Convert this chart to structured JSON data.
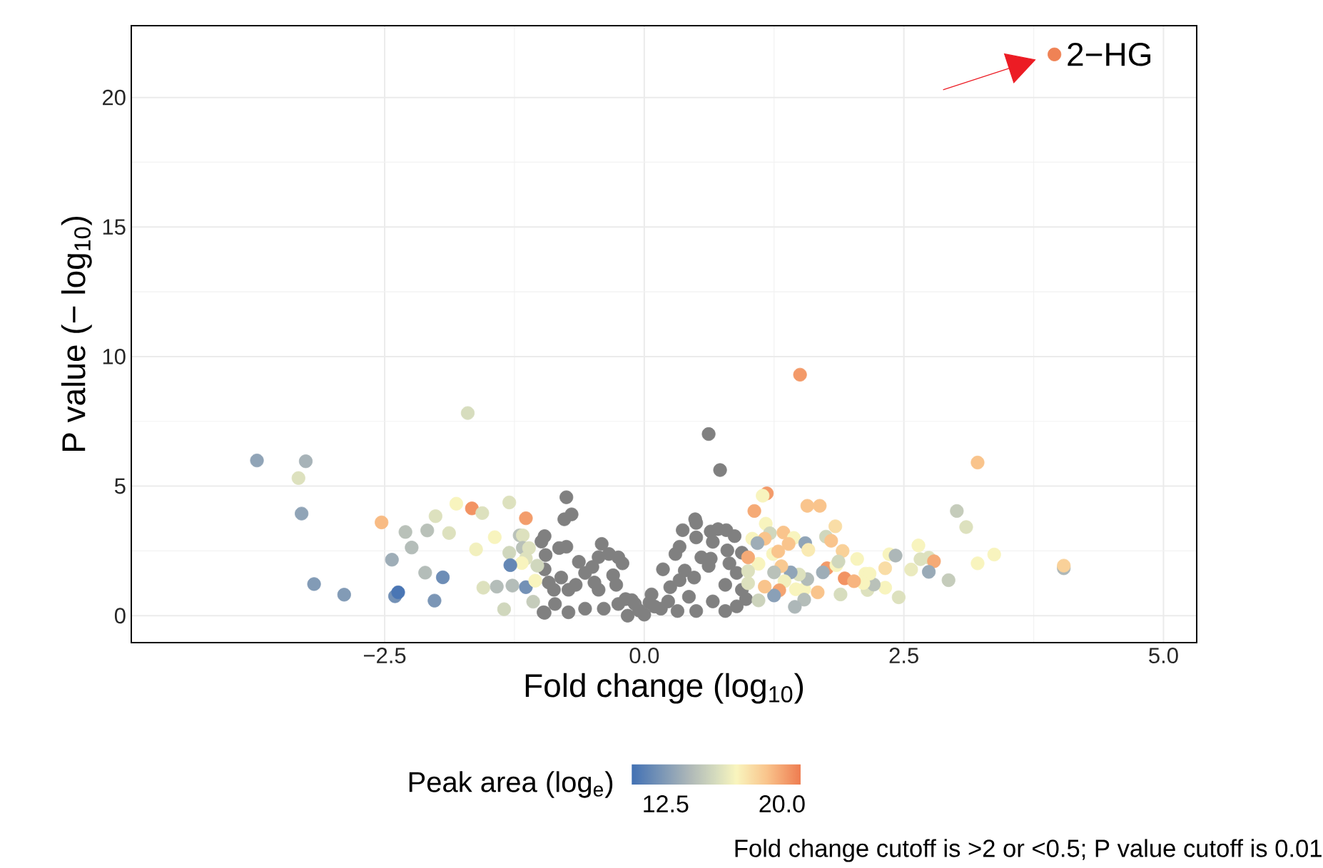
{
  "chart_data": {
    "type": "scatter",
    "xlabel": "Fold change (log$_{10}$)",
    "ylabel": "P value (− log$_{10}$)",
    "clabel": "Peak area (log$_{e}$)",
    "xlim": [
      -4.94,
      5.32
    ],
    "ylim": [
      -1.04,
      22.77
    ],
    "xticks": [
      {
        "value": -2.5,
        "label": "−2.5"
      },
      {
        "value": 0,
        "label": "0.0"
      },
      {
        "value": 2.5,
        "label": "2.5"
      },
      {
        "value": 5,
        "label": "5.0"
      }
    ],
    "yticks": [
      0,
      5,
      10,
      15,
      20
    ],
    "clim": [
      10.3,
      21.2
    ],
    "cticks": [
      12.5,
      {
        "value": 20,
        "label": "20.0"
      }
    ],
    "grid": true,
    "marker": "circle",
    "series": [
      {
        "color": "#808080",
        "x": [
          0.62,
          0.73,
          -0.75,
          -0.7,
          -0.77,
          -0.96,
          -0.99,
          -0.75,
          -0.82,
          -0.95,
          -0.41,
          -0.34,
          -0.63,
          -0.44,
          -0.25,
          -0.21,
          -0.96,
          -0.5,
          -0.57,
          -0.92,
          -0.8,
          -0.66,
          -0.97,
          -0.73,
          -0.86,
          -0.57,
          -0.44,
          -0.39,
          -0.3,
          -0.18,
          -0.16,
          0.0,
          0.16,
          0.07,
          0.18,
          0.25,
          0.32,
          0.37,
          0.49,
          0.5,
          0.3,
          0.34,
          0.5,
          0.64,
          0.71,
          0.79,
          0.87,
          0.66,
          0.8,
          0.94,
          0.55,
          0.64,
          0.39,
          0.48,
          0.62,
          0.82,
          0.89,
          0.78,
          0.94,
          0.98,
          0.89,
          0.78,
          0.66,
          0.5,
          0.43,
          0.34,
          0.23,
          -0.09,
          -0.25,
          -0.48,
          -0.73,
          -0.87,
          -0.27,
          -0.96,
          -0.05,
          0.1,
          -0.12,
          0.05
        ],
        "values": [
          7.01,
          5.62,
          4.57,
          3.91,
          3.72,
          3.07,
          2.86,
          2.66,
          2.61,
          2.34,
          2.77,
          2.38,
          2.08,
          2.26,
          2.25,
          2.02,
          1.79,
          1.88,
          1.65,
          1.28,
          1.47,
          1.19,
          0.13,
          0.13,
          0.45,
          0.27,
          1.0,
          0.27,
          1.56,
          0.64,
          0.0,
          0.04,
          0.27,
          0.82,
          1.79,
          1.1,
          0.18,
          3.3,
          3.72,
          3.58,
          2.38,
          2.66,
          3.02,
          3.25,
          3.34,
          3.3,
          3.07,
          2.85,
          2.52,
          2.43,
          2.25,
          2.2,
          1.74,
          1.47,
          1.92,
          2.02,
          1.65,
          1.19,
          1.0,
          0.64,
          0.36,
          0.18,
          0.55,
          0.18,
          0.73,
          1.37,
          0.55,
          0.45,
          0.45,
          1.28,
          1.0,
          1.0,
          1.19,
          0.11,
          0.2,
          0.35,
          0.6,
          0.5
        ]
      },
      {
        "x": [
          -1.7,
          -3.73,
          -3.26,
          -3.33,
          -3.3,
          -2.53,
          -2.3,
          -2.09,
          -2.24,
          -2.01,
          -1.88,
          -1.81,
          -1.66,
          -1.56,
          -1.44,
          -1.62,
          -1.3,
          -1.14,
          -1.2,
          -1.17,
          -1.17,
          -1.11,
          -1.3,
          -1.14,
          -1.18,
          -1.03,
          -1.29,
          -2.43,
          -2.11,
          -1.94,
          -3.18,
          -2.89,
          -2.4,
          -2.37,
          -2.02,
          -1.55,
          -1.42,
          -1.27,
          -1.14,
          -1.05,
          -1.07,
          -1.35,
          1.5,
          3.21,
          3.01,
          3.1,
          1.18,
          1.14,
          1.06,
          1.57,
          1.69,
          1.84,
          1.17,
          1.21,
          1.34,
          1.44,
          1.39,
          1.75,
          1.8,
          1.55,
          1.58,
          1.04,
          1.16,
          1.91,
          2.05,
          2.36,
          2.42,
          2.64,
          2.66,
          2.74,
          2.79,
          2.57,
          2.74,
          2.93,
          3.21,
          3.37,
          4.04,
          4.04,
          2.32,
          2.45,
          2.32,
          2.15,
          2.21,
          2.13,
          2.17,
          2.11,
          1.93,
          2.02,
          1.76,
          1.72,
          1.85,
          1.87,
          1.89,
          1.67,
          1.54,
          1.46,
          1.54,
          1.45,
          1.57,
          1.49,
          1.41,
          1.35,
          1.3,
          1.25,
          1.32,
          1.24,
          1.29,
          1.16,
          1.1,
          1.1,
          1.0,
          1.0,
          1.0,
          1.09,
          1.25,
          3.95
        ],
        "values": [
          7.82,
          5.99,
          5.96,
          5.31,
          3.94,
          3.6,
          3.23,
          3.29,
          2.63,
          3.84,
          3.19,
          4.32,
          4.14,
          3.96,
          3.03,
          2.56,
          4.37,
          3.76,
          3.1,
          3.1,
          2.62,
          2.61,
          2.43,
          2.21,
          2.03,
          1.93,
          1.95,
          2.16,
          1.66,
          1.48,
          1.22,
          0.81,
          0.75,
          0.9,
          0.58,
          1.08,
          1.12,
          1.16,
          1.1,
          1.35,
          0.54,
          0.25,
          9.3,
          5.91,
          4.04,
          3.42,
          4.72,
          4.63,
          4.04,
          4.24,
          4.24,
          3.45,
          3.55,
          3.18,
          3.21,
          3.0,
          2.77,
          3.05,
          2.89,
          2.8,
          2.54,
          2.97,
          2.97,
          2.5,
          2.19,
          2.37,
          2.32,
          2.71,
          2.18,
          2.24,
          2.1,
          1.78,
          1.69,
          1.37,
          2.02,
          2.36,
          1.83,
          1.93,
          1.83,
          0.71,
          1.08,
          0.99,
          1.2,
          1.62,
          1.62,
          1.26,
          1.44,
          1.33,
          1.83,
          1.67,
          1.95,
          2.09,
          0.82,
          0.9,
          1.02,
          1.02,
          0.62,
          0.34,
          1.41,
          1.59,
          1.67,
          1.33,
          0.98,
          0.78,
          1.91,
          2.38,
          2.48,
          1.12,
          0.59,
          2.0,
          1.72,
          1.25,
          2.25,
          2.8,
          1.67,
          21.66
        ],
        "colors": [
          "#d7ddbe",
          "#90a4b7",
          "#a7b3b8",
          "#dde1be",
          "#90a4b7",
          "#f8bb84",
          "#b9c1b9",
          "#b9c1b9",
          "#b4bdb9",
          "#dde1be",
          "#dde1be",
          "#f8f4be",
          "#f29363",
          "#dde1be",
          "#f8f4be",
          "#f2f0be",
          "#dde1be",
          "#f39d6c",
          "#b9c1b9",
          "#dde1be",
          "#b9c1b9",
          "#dde1be",
          "#d0d7bd",
          "#dde1be",
          "#f8f4be",
          "#d0d7bd",
          "#6487b5",
          "#9eadb7",
          "#b4bdb9",
          "#6d8db6",
          "#829bb6",
          "#829bb6",
          "#7391b6",
          "#4a76b4",
          "#7b96b6",
          "#dde1be",
          "#b4bdb9",
          "#b4bdb9",
          "#7391b6",
          "#f8f4be",
          "#c5ccbb",
          "#d0d7bd",
          "#f39a69",
          "#f9c48c",
          "#c5ccbb",
          "#dde1be",
          "#f39a69",
          "#f8f4be",
          "#f5aa76",
          "#f9c48c",
          "#f9c48c",
          "#f9dda6",
          "#f8f4be",
          "#d0d7bd",
          "#f9c48c",
          "#f8f4be",
          "#f9c48c",
          "#d0d7bd",
          "#f9c48c",
          "#90a4b7",
          "#f9eab3",
          "#f8f4be",
          "#f9c48c",
          "#f9d199",
          "#f8f4be",
          "#f8f4be",
          "#adb7b8",
          "#f8f4be",
          "#dde1be",
          "#dde1be",
          "#f5aa76",
          "#eaeabe",
          "#99aab7",
          "#c5ccbb",
          "#f8f4be",
          "#f8f4be",
          "#adb7b8",
          "#f9d199",
          "#f9dda6",
          "#dde1be",
          "#f8f4be",
          "#dde1be",
          "#b9c1b9",
          "#f8f4be",
          "#f8f4be",
          "#f8f4be",
          "#f29363",
          "#f7b47f",
          "#f39a69",
          "#9eadb7",
          "#f8f4be",
          "#d0d7bd",
          "#d7ddbe",
          "#f9c48c",
          "#f8f4be",
          "#f8f4be",
          "#b4bdb9",
          "#adb7b8",
          "#b2bbb8",
          "#dde1be",
          "#90a4b7",
          "#f2f0be",
          "#f4a471",
          "#8aa0b7",
          "#f9c991",
          "#f8f4be",
          "#f9c48c",
          "#f9c48c",
          "#ccd3bc",
          "#f8f4be",
          "#dde1be",
          "#dde1be",
          "#f5aa76",
          "#9eadb7",
          "#b9c1b9",
          "#ef8255"
        ],
        "cvalues": [
          15.8,
          13.0,
          13.8,
          16.0,
          13.0,
          19.3,
          14.5,
          14.5,
          14.3,
          16.0,
          16.0,
          17.0,
          20.5,
          16.0,
          17.0,
          16.8,
          16.0,
          20.2,
          14.5,
          16.0,
          14.5,
          16.0,
          15.5,
          16.0,
          17.0,
          15.5,
          11.5,
          13.5,
          14.3,
          11.8,
          12.5,
          12.5,
          12.0,
          10.8,
          12.3,
          16.0,
          14.3,
          14.3,
          12.0,
          17.0,
          15.0,
          15.5,
          20.3,
          19.0,
          15.0,
          16.0,
          20.3,
          17.0,
          19.8,
          19.0,
          19.0,
          18.0,
          17.0,
          15.5,
          19.0,
          17.0,
          19.0,
          15.5,
          19.0,
          13.0,
          17.5,
          17.0,
          19.0,
          18.5,
          17.0,
          17.0,
          14.0,
          17.0,
          16.0,
          16.0,
          19.8,
          16.5,
          13.3,
          15.0,
          17.0,
          17.0,
          14.0,
          18.5,
          18.0,
          16.0,
          17.0,
          16.0,
          14.5,
          17.0,
          17.0,
          17.0,
          20.5,
          19.5,
          20.3,
          13.5,
          17.0,
          15.5,
          15.8,
          19.0,
          17.0,
          17.0,
          14.3,
          14.0,
          14.2,
          16.0,
          13.0,
          16.8,
          20.0,
          12.8,
          18.8,
          17.0,
          19.0,
          19.0,
          15.3,
          17.0,
          16.0,
          16.0,
          19.8,
          13.5,
          14.5,
          21.0
        ]
      }
    ],
    "annotations": [
      {
        "text": "2−HG",
        "x": 3.95,
        "y": 21.66
      },
      "Fold change cutoff is >2 or <0.5; P value cutoff is 0.01"
    ]
  }
}
